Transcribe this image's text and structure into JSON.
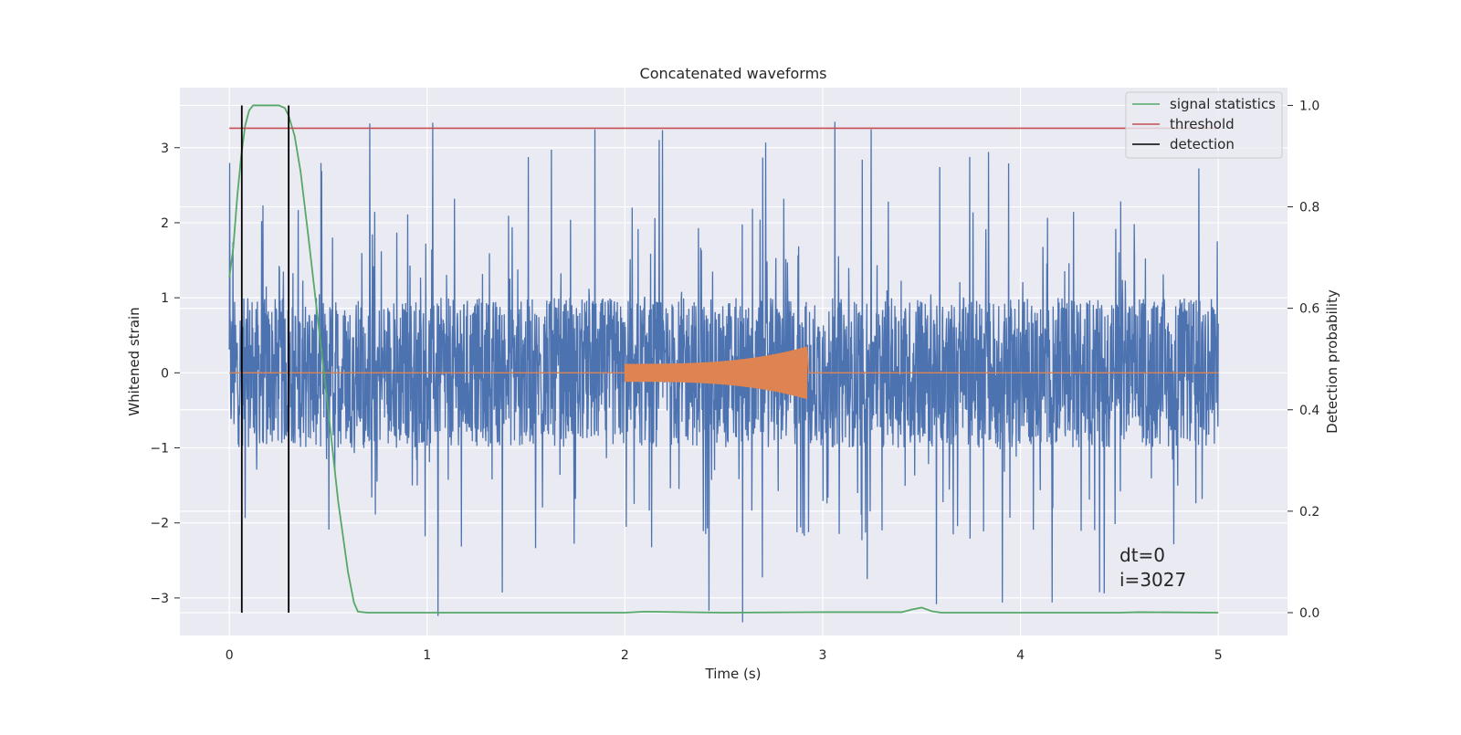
{
  "chart_data": {
    "type": "line",
    "title": "Concatenated waveforms",
    "xlabel": "Time (s)",
    "ylabel_left": "Whitened strain",
    "ylabel_right": "Detection probability",
    "xlim": [
      -0.25,
      5.35
    ],
    "ylim_left": [
      -3.5,
      3.8
    ],
    "ylim_right": [
      -0.045,
      1.035
    ],
    "xticks": [
      0,
      1,
      2,
      3,
      4,
      5
    ],
    "xtick_labels": [
      "0",
      "1",
      "2",
      "3",
      "4",
      "5"
    ],
    "yticks_left": [
      -3,
      -2,
      -1,
      0,
      1,
      2,
      3
    ],
    "ytick_labels_left": [
      "−3",
      "−2",
      "−1",
      "0",
      "1",
      "2",
      "3"
    ],
    "yticks_right": [
      0.0,
      0.2,
      0.4,
      0.6,
      0.8,
      1.0
    ],
    "ytick_labels_right": [
      "0.0",
      "0.2",
      "0.4",
      "0.6",
      "0.8",
      "1.0"
    ],
    "grid": true,
    "legend_position": "top-right",
    "legend": [
      {
        "label": "signal statistics",
        "color": "#55a868"
      },
      {
        "label": "threshold",
        "color": "#c44e52"
      },
      {
        "label": "detection",
        "color": "#000000"
      }
    ],
    "series": [
      {
        "kind": "noise",
        "axis": "left",
        "color": "#4c72b0",
        "x_range": [
          0,
          5
        ],
        "core_amplitude": 0.8,
        "max_abs": 3.35
      },
      {
        "kind": "injected_signal",
        "axis": "left",
        "color": "#dd8452",
        "x_range": [
          0,
          5
        ],
        "burst_x_range": [
          2.0,
          2.92
        ],
        "burst_amplitude_start": 0.12,
        "burst_amplitude_peak": 0.35
      },
      {
        "name": "signal statistics",
        "axis": "right",
        "color": "#55a868",
        "x": [
          0.0,
          0.02,
          0.04,
          0.06,
          0.08,
          0.1,
          0.12,
          0.15,
          0.2,
          0.25,
          0.28,
          0.3,
          0.33,
          0.36,
          0.4,
          0.45,
          0.5,
          0.55,
          0.6,
          0.63,
          0.65,
          0.7,
          1.0,
          1.5,
          2.0,
          2.1,
          2.5,
          3.0,
          3.4,
          3.45,
          3.5,
          3.55,
          3.6,
          4.0,
          4.5,
          4.6,
          5.0
        ],
        "y": [
          0.66,
          0.72,
          0.82,
          0.9,
          0.96,
          0.99,
          1.0,
          1.0,
          1.0,
          1.0,
          0.995,
          0.98,
          0.94,
          0.87,
          0.74,
          0.57,
          0.4,
          0.22,
          0.08,
          0.02,
          0.002,
          0.0,
          0.0,
          0.0,
          0.0,
          0.002,
          0.0,
          0.001,
          0.001,
          0.006,
          0.01,
          0.003,
          0.0,
          0.0,
          0.0,
          0.001,
          0.0
        ]
      },
      {
        "name": "threshold",
        "axis": "right",
        "color": "#c44e52",
        "x": [
          0,
          5
        ],
        "y": [
          0.955,
          0.955
        ]
      }
    ],
    "detections": {
      "color": "#000000",
      "x": [
        0.063,
        0.3
      ],
      "y_range": [
        0.0,
        1.0
      ]
    },
    "annotations": [
      "dt=0",
      "i=3027"
    ]
  }
}
